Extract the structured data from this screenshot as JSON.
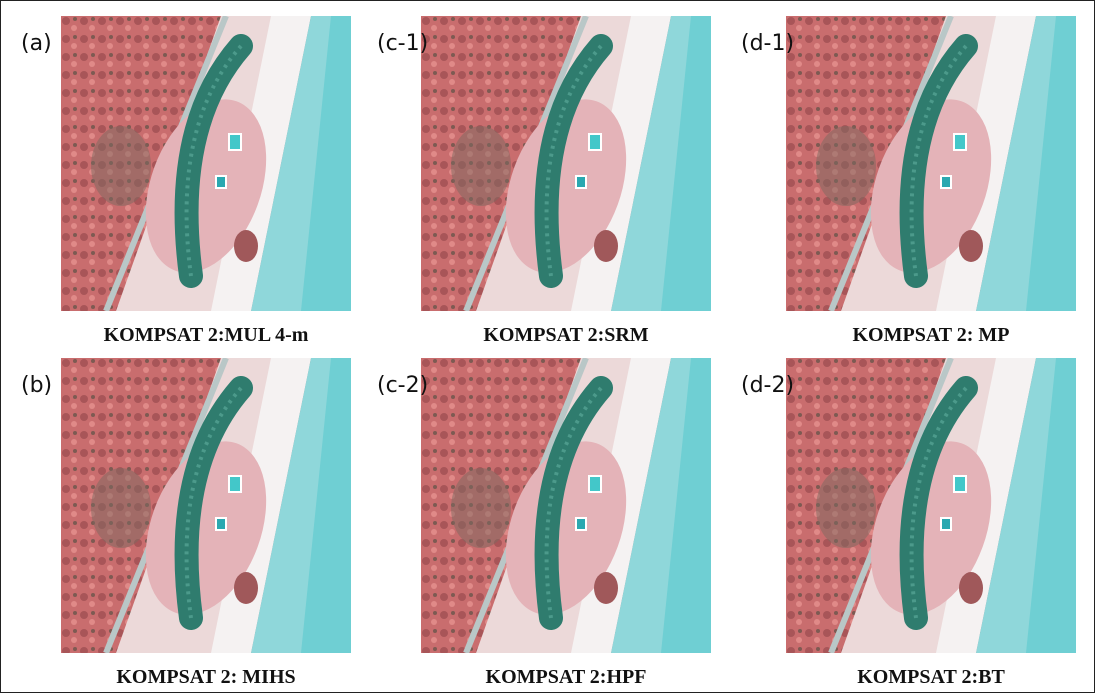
{
  "panels": [
    {
      "label": "(a)",
      "caption": "KOMPSAT 2:MUL 4-m"
    },
    {
      "label": "(c-1)",
      "caption": "KOMPSAT 2:SRM"
    },
    {
      "label": "(d-1)",
      "caption": "KOMPSAT 2: MP"
    },
    {
      "label": "(b)",
      "caption": "KOMPSAT 2: MIHS"
    },
    {
      "label": "(c-2)",
      "caption": "KOMPSAT 2:HPF"
    },
    {
      "label": "(d-2)",
      "caption": "KOMPSAT 2:BT"
    }
  ]
}
